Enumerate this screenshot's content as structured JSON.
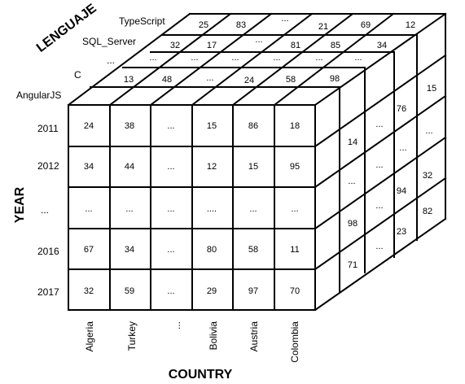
{
  "axis_titles": {
    "language": "LENGUAJE",
    "year": "YEAR",
    "country": "COUNTRY"
  },
  "languages": [
    "AngularJS",
    "C",
    "...",
    "SQL_Server",
    "TypeScript"
  ],
  "years": [
    "2011",
    "2012",
    "...",
    "2016",
    "2017"
  ],
  "countries": [
    "Algeria",
    "Turkey",
    "...",
    "Bolivia",
    "Austria",
    "Colombia"
  ],
  "front_values": [
    [
      "24",
      "38",
      "...",
      "15",
      "86",
      "18"
    ],
    [
      "34",
      "44",
      "...",
      "12",
      "15",
      "95"
    ],
    [
      "...",
      "...",
      "...",
      "....",
      "...",
      "..."
    ],
    [
      "67",
      "34",
      "...",
      "80",
      "58",
      "11"
    ],
    [
      "32",
      "59",
      "...",
      "29",
      "97",
      "70"
    ]
  ],
  "top_values": {
    "c": [
      "13",
      "48",
      "...",
      "24",
      "58",
      "98"
    ],
    "ellipsis": [
      "...",
      "...",
      "...",
      "...",
      "...",
      "..."
    ],
    "sql_server": [
      "32",
      "17",
      "...",
      "81",
      "85",
      "34"
    ],
    "typescript": [
      "25",
      "83",
      "...",
      "21",
      "69",
      "12"
    ]
  },
  "side_values": {
    "col1": [
      "14",
      "...",
      "98",
      "71"
    ],
    "col2": [
      "...",
      "...",
      "...",
      "..."
    ],
    "col3": [
      "76",
      "...",
      "94",
      "23"
    ],
    "col4": [
      "15",
      "...",
      "32",
      "82"
    ]
  }
}
